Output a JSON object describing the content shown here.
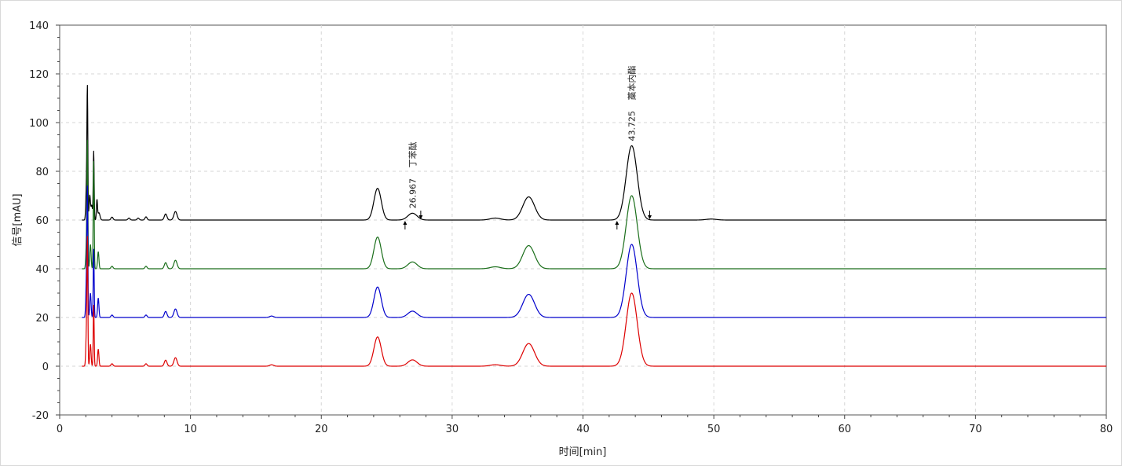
{
  "chart_data": {
    "type": "line",
    "xlabel": "时间[min]",
    "ylabel": "信号[mAU]",
    "xlim": [
      0,
      80
    ],
    "ylim": [
      -20,
      140
    ],
    "x_ticks": [
      0,
      10,
      20,
      30,
      40,
      50,
      60,
      70,
      80
    ],
    "y_ticks": [
      -20,
      0,
      20,
      40,
      60,
      80,
      100,
      120,
      140
    ],
    "grid": true,
    "series": [
      {
        "color": "#000000",
        "baseline": 60,
        "peaks": [
          {
            "rt": 2.05,
            "h": 14,
            "w": 0.05
          },
          {
            "rt": 2.12,
            "h": 50,
            "w": 0.035
          },
          {
            "rt": 2.3,
            "h": 10,
            "w": 0.05
          },
          {
            "rt": 2.45,
            "h": 6,
            "w": 0.06
          },
          {
            "rt": 2.6,
            "h": 28,
            "w": 0.035
          },
          {
            "rt": 2.85,
            "h": 8,
            "w": 0.04
          },
          {
            "rt": 3.0,
            "h": 3,
            "w": 0.08
          },
          {
            "rt": 4.0,
            "h": 1.2,
            "w": 0.08
          },
          {
            "rt": 5.3,
            "h": 0.8,
            "w": 0.08
          },
          {
            "rt": 6.0,
            "h": 0.8,
            "w": 0.08
          },
          {
            "rt": 6.6,
            "h": 1.3,
            "w": 0.08
          },
          {
            "rt": 8.1,
            "h": 2.5,
            "w": 0.1
          },
          {
            "rt": 8.85,
            "h": 3.5,
            "w": 0.12
          },
          {
            "rt": 24.3,
            "h": 13,
            "w": 0.28
          },
          {
            "rt": 26.967,
            "h": 2.8,
            "w": 0.35
          },
          {
            "rt": 33.3,
            "h": 0.8,
            "w": 0.4
          },
          {
            "rt": 35.85,
            "h": 9.5,
            "w": 0.45
          },
          {
            "rt": 43.725,
            "h": 30.5,
            "w": 0.42
          },
          {
            "rt": 49.8,
            "h": 0.4,
            "w": 0.4
          }
        ],
        "annotations": [
          {
            "rt": 26.967,
            "retention_label": "26.967",
            "name": "丁苯酞"
          },
          {
            "rt": 43.725,
            "retention_label": "43.725",
            "name": "藁本内酯"
          }
        ],
        "integration_markers": [
          26.4,
          27.6,
          42.6,
          45.1
        ]
      },
      {
        "color": "#1a6e1a",
        "baseline": 40,
        "peaks": [
          {
            "rt": 2.05,
            "h": 10,
            "w": 0.05
          },
          {
            "rt": 2.12,
            "h": 49,
            "w": 0.035
          },
          {
            "rt": 2.35,
            "h": 10,
            "w": 0.05
          },
          {
            "rt": 2.6,
            "h": 44,
            "w": 0.035
          },
          {
            "rt": 2.95,
            "h": 7,
            "w": 0.05
          },
          {
            "rt": 4.0,
            "h": 1.0,
            "w": 0.08
          },
          {
            "rt": 6.6,
            "h": 1.0,
            "w": 0.08
          },
          {
            "rt": 8.1,
            "h": 2.5,
            "w": 0.1
          },
          {
            "rt": 8.85,
            "h": 3.5,
            "w": 0.12
          },
          {
            "rt": 24.3,
            "h": 13,
            "w": 0.28
          },
          {
            "rt": 26.967,
            "h": 2.8,
            "w": 0.35
          },
          {
            "rt": 33.3,
            "h": 0.8,
            "w": 0.4
          },
          {
            "rt": 35.85,
            "h": 9.5,
            "w": 0.45
          },
          {
            "rt": 43.725,
            "h": 30,
            "w": 0.42
          }
        ]
      },
      {
        "color": "#0000cc",
        "baseline": 20,
        "peaks": [
          {
            "rt": 2.05,
            "h": 16,
            "w": 0.05
          },
          {
            "rt": 2.12,
            "h": 48,
            "w": 0.035
          },
          {
            "rt": 2.35,
            "h": 10,
            "w": 0.05
          },
          {
            "rt": 2.6,
            "h": 28,
            "w": 0.035
          },
          {
            "rt": 2.95,
            "h": 8,
            "w": 0.05
          },
          {
            "rt": 4.0,
            "h": 1.0,
            "w": 0.08
          },
          {
            "rt": 6.6,
            "h": 1.0,
            "w": 0.08
          },
          {
            "rt": 8.1,
            "h": 2.5,
            "w": 0.1
          },
          {
            "rt": 8.85,
            "h": 3.5,
            "w": 0.12
          },
          {
            "rt": 16.2,
            "h": 0.6,
            "w": 0.15
          },
          {
            "rt": 24.3,
            "h": 12.5,
            "w": 0.28
          },
          {
            "rt": 26.967,
            "h": 2.6,
            "w": 0.35
          },
          {
            "rt": 35.85,
            "h": 9.5,
            "w": 0.45
          },
          {
            "rt": 43.725,
            "h": 30,
            "w": 0.42
          }
        ]
      },
      {
        "color": "#dd0000",
        "baseline": 0,
        "peaks": [
          {
            "rt": 2.05,
            "h": 14,
            "w": 0.05
          },
          {
            "rt": 2.12,
            "h": 48,
            "w": 0.035
          },
          {
            "rt": 2.35,
            "h": 9,
            "w": 0.05
          },
          {
            "rt": 2.6,
            "h": 25,
            "w": 0.035
          },
          {
            "rt": 2.95,
            "h": 7,
            "w": 0.05
          },
          {
            "rt": 4.0,
            "h": 1.0,
            "w": 0.08
          },
          {
            "rt": 6.6,
            "h": 1.0,
            "w": 0.08
          },
          {
            "rt": 8.1,
            "h": 2.5,
            "w": 0.1
          },
          {
            "rt": 8.85,
            "h": 3.5,
            "w": 0.12
          },
          {
            "rt": 16.2,
            "h": 0.6,
            "w": 0.15
          },
          {
            "rt": 24.3,
            "h": 12,
            "w": 0.28
          },
          {
            "rt": 26.967,
            "h": 2.6,
            "w": 0.35
          },
          {
            "rt": 33.3,
            "h": 0.6,
            "w": 0.4
          },
          {
            "rt": 35.85,
            "h": 9.3,
            "w": 0.45
          },
          {
            "rt": 43.725,
            "h": 30,
            "w": 0.42
          }
        ]
      }
    ]
  }
}
